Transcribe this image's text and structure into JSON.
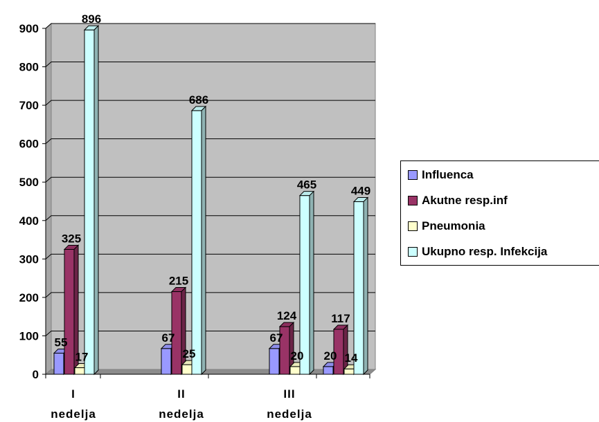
{
  "chart_data": {
    "type": "bar",
    "categories": [
      [
        "I",
        "nedelja"
      ],
      [
        "II",
        "nedelja"
      ],
      [
        "III",
        "nedelja"
      ],
      [
        "",
        ""
      ]
    ],
    "series": [
      {
        "name": "Influenca",
        "values": [
          55,
          67,
          67,
          20
        ],
        "color": "#9999ff"
      },
      {
        "name": "Akutne resp.inf",
        "values": [
          325,
          215,
          124,
          117
        ],
        "color": "#993366"
      },
      {
        "name": "Pneumonia",
        "values": [
          17,
          25,
          20,
          14
        ],
        "color": "#ffffcc"
      },
      {
        "name": "Ukupno resp. Infekcija",
        "values": [
          896,
          686,
          465,
          449
        ],
        "color": "#ccffff"
      }
    ],
    "ylim": [
      0,
      900
    ],
    "yticks": [
      "0",
      "100",
      "200",
      "300",
      "400",
      "500",
      "600",
      "700",
      "800",
      "900"
    ],
    "grid": true,
    "legend_position": "right",
    "plot_background": "#c0c0c0"
  }
}
